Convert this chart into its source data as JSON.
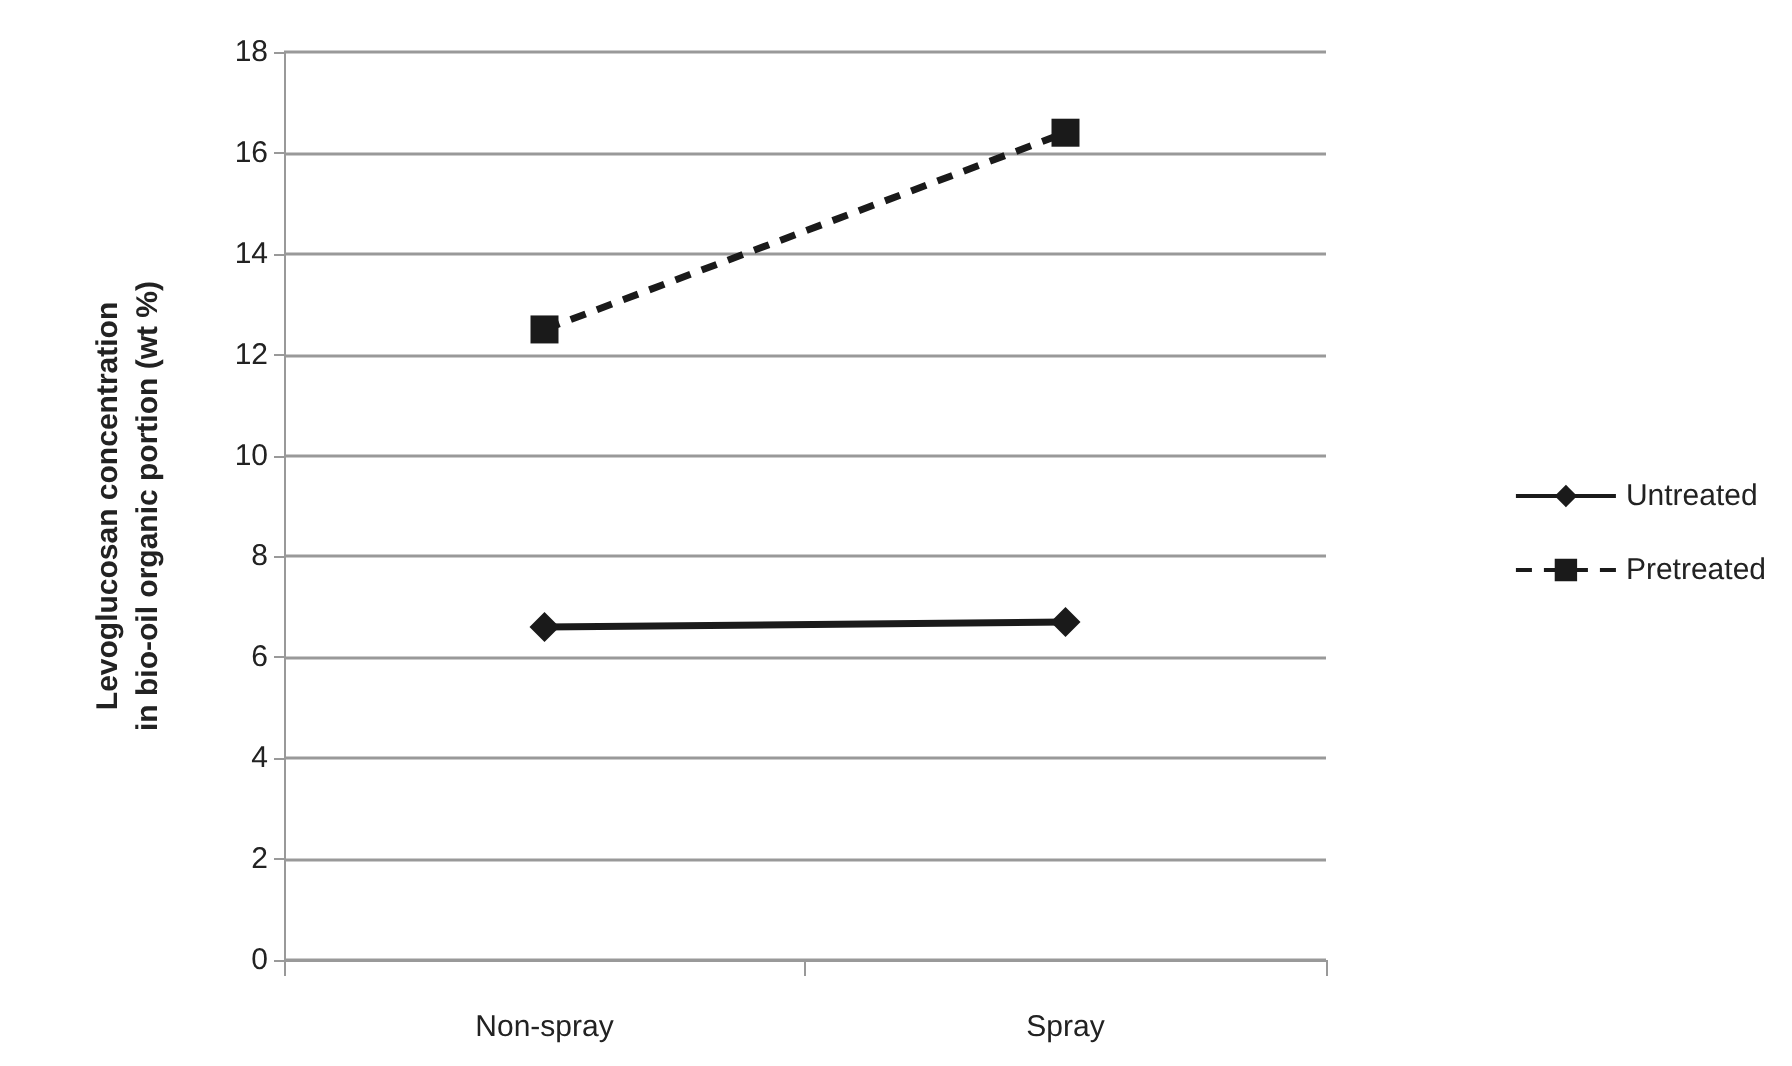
{
  "chart_data": {
    "type": "line",
    "ylabel": "Levoglucosan concentration\nin bio-oil organic portion (wt %)",
    "categories": [
      "Non-spray",
      "Spray"
    ],
    "series": [
      {
        "name": "Untreated",
        "color": "#1a1a1a",
        "values": [
          6.6,
          6.7
        ],
        "marker": "diamond",
        "line_style": "solid"
      },
      {
        "name": "Pretreated",
        "color": "#1a1a1a",
        "values": [
          12.5,
          16.4
        ],
        "marker": "square",
        "line_style": "dashed"
      }
    ],
    "ylim": [
      0,
      18
    ],
    "yticks": [
      0,
      2,
      4,
      6,
      8,
      10,
      12,
      14,
      16,
      18
    ],
    "grid": "y",
    "legend": "right"
  }
}
